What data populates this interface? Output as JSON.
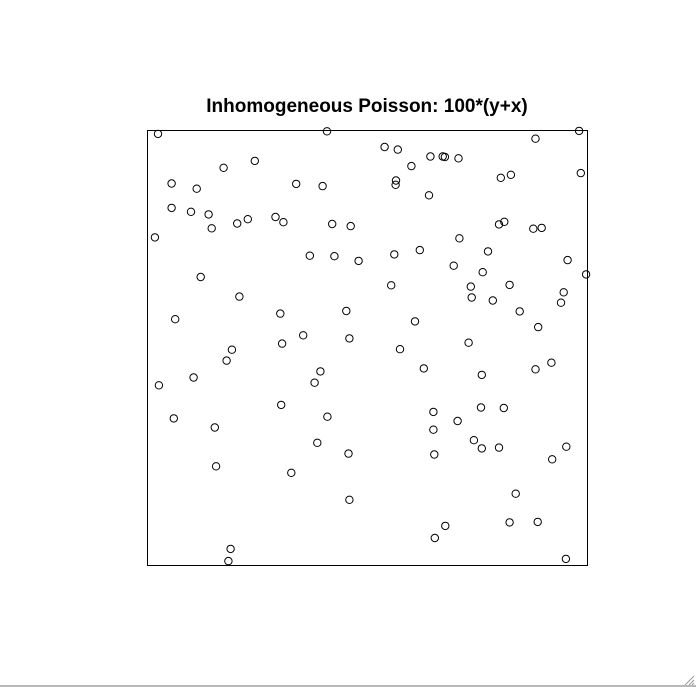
{
  "chart_data": {
    "type": "scatter",
    "title": "Inhomogeneous Poisson: 100*(y+x)",
    "xlim": [
      0,
      1
    ],
    "ylim": [
      0,
      1
    ],
    "marker": "open-circle",
    "color": "#000000",
    "points": [
      [
        0.025,
        0.991
      ],
      [
        0.409,
        0.997
      ],
      [
        0.54,
        0.961
      ],
      [
        0.57,
        0.955
      ],
      [
        0.672,
        0.939
      ],
      [
        0.677,
        0.938
      ],
      [
        0.982,
        0.998
      ],
      [
        0.986,
        0.901
      ],
      [
        0.883,
        0.98
      ],
      [
        0.245,
        0.929
      ],
      [
        0.174,
        0.913
      ],
      [
        0.644,
        0.939
      ],
      [
        0.708,
        0.935
      ],
      [
        0.601,
        0.917
      ],
      [
        0.804,
        0.89
      ],
      [
        0.827,
        0.897
      ],
      [
        0.056,
        0.877
      ],
      [
        0.113,
        0.865
      ],
      [
        0.339,
        0.876
      ],
      [
        0.399,
        0.871
      ],
      [
        0.566,
        0.884
      ],
      [
        0.565,
        0.874
      ],
      [
        0.641,
        0.85
      ],
      [
        0.056,
        0.821
      ],
      [
        0.1,
        0.812
      ],
      [
        0.14,
        0.806
      ],
      [
        0.147,
        0.774
      ],
      [
        0.205,
        0.785
      ],
      [
        0.229,
        0.795
      ],
      [
        0.292,
        0.8
      ],
      [
        0.31,
        0.788
      ],
      [
        0.421,
        0.784
      ],
      [
        0.463,
        0.779
      ],
      [
        0.812,
        0.789
      ],
      [
        0.8,
        0.783
      ],
      [
        0.878,
        0.773
      ],
      [
        0.897,
        0.775
      ],
      [
        0.018,
        0.753
      ],
      [
        0.71,
        0.751
      ],
      [
        0.62,
        0.724
      ],
      [
        0.775,
        0.721
      ],
      [
        0.37,
        0.711
      ],
      [
        0.426,
        0.71
      ],
      [
        0.562,
        0.714
      ],
      [
        0.481,
        0.699
      ],
      [
        0.697,
        0.688
      ],
      [
        0.763,
        0.673
      ],
      [
        0.956,
        0.701
      ],
      [
        0.998,
        0.668
      ],
      [
        0.122,
        0.662
      ],
      [
        0.736,
        0.64
      ],
      [
        0.824,
        0.644
      ],
      [
        0.555,
        0.643
      ],
      [
        0.738,
        0.615
      ],
      [
        0.786,
        0.608
      ],
      [
        0.947,
        0.627
      ],
      [
        0.21,
        0.617
      ],
      [
        0.941,
        0.603
      ],
      [
        0.847,
        0.583
      ],
      [
        0.303,
        0.578
      ],
      [
        0.453,
        0.584
      ],
      [
        0.064,
        0.565
      ],
      [
        0.609,
        0.56
      ],
      [
        0.889,
        0.547
      ],
      [
        0.355,
        0.528
      ],
      [
        0.46,
        0.521
      ],
      [
        0.731,
        0.511
      ],
      [
        0.307,
        0.509
      ],
      [
        0.193,
        0.495
      ],
      [
        0.575,
        0.496
      ],
      [
        0.181,
        0.47
      ],
      [
        0.629,
        0.452
      ],
      [
        0.883,
        0.45
      ],
      [
        0.919,
        0.465
      ],
      [
        0.394,
        0.445
      ],
      [
        0.106,
        0.431
      ],
      [
        0.761,
        0.437
      ],
      [
        0.381,
        0.419
      ],
      [
        0.027,
        0.413
      ],
      [
        0.305,
        0.368
      ],
      [
        0.759,
        0.362
      ],
      [
        0.811,
        0.361
      ],
      [
        0.651,
        0.352
      ],
      [
        0.706,
        0.331
      ],
      [
        0.061,
        0.337
      ],
      [
        0.41,
        0.341
      ],
      [
        0.154,
        0.316
      ],
      [
        0.651,
        0.311
      ],
      [
        0.387,
        0.281
      ],
      [
        0.743,
        0.287
      ],
      [
        0.8,
        0.27
      ],
      [
        0.761,
        0.268
      ],
      [
        0.953,
        0.272
      ],
      [
        0.458,
        0.256
      ],
      [
        0.653,
        0.254
      ],
      [
        0.921,
        0.243
      ],
      [
        0.157,
        0.227
      ],
      [
        0.328,
        0.212
      ],
      [
        0.838,
        0.164
      ],
      [
        0.46,
        0.15
      ],
      [
        0.678,
        0.09
      ],
      [
        0.654,
        0.062
      ],
      [
        0.824,
        0.098
      ],
      [
        0.888,
        0.099
      ],
      [
        0.19,
        0.037
      ],
      [
        0.952,
        0.014
      ],
      [
        0.185,
        0.009
      ]
    ]
  }
}
